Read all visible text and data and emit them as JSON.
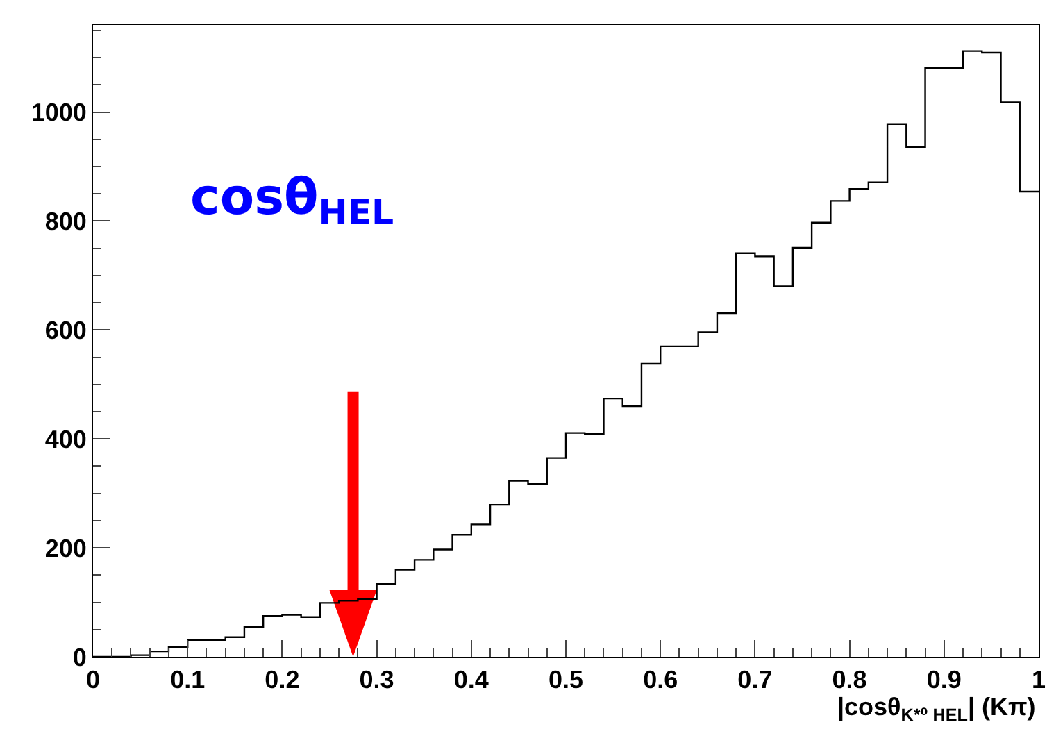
{
  "chart_data": {
    "type": "histogram",
    "xlabel": "|cosθ$_{K*⁰ HEL}$| (Kπ)",
    "bins": [
      0,
      0.02,
      0.04,
      0.06,
      0.08,
      0.1,
      0.12,
      0.14,
      0.16,
      0.18,
      0.2,
      0.22,
      0.24,
      0.26,
      0.28,
      0.3,
      0.32,
      0.34,
      0.36,
      0.38,
      0.4,
      0.42,
      0.44,
      0.46,
      0.48,
      0.5,
      0.52,
      0.54,
      0.56,
      0.58,
      0.6,
      0.62,
      0.64,
      0.66,
      0.68,
      0.7,
      0.72,
      0.74,
      0.76,
      0.78,
      0.8,
      0.82,
      0.84,
      0.86,
      0.88,
      0.9,
      0.92,
      0.94,
      0.96,
      0.98,
      1
    ],
    "values": [
      0,
      0,
      3,
      10,
      18,
      31,
      31,
      36,
      55,
      75,
      77,
      73,
      99,
      103,
      106,
      134,
      160,
      178,
      197,
      224,
      243,
      279,
      323,
      317,
      365,
      411,
      409,
      474,
      460,
      538,
      570,
      570,
      596,
      631,
      741,
      735,
      680,
      751,
      797,
      837,
      859,
      871,
      978,
      936,
      1081,
      1081,
      1112,
      1109,
      1018,
      854
    ],
    "color": "#000000",
    "xlim": [
      0,
      1
    ],
    "ylim": [
      0,
      1160
    ],
    "xticks": [
      0,
      0.1,
      0.2,
      0.3,
      0.4,
      0.5,
      0.6,
      0.7,
      0.8,
      0.9,
      1
    ],
    "yticks": [
      0,
      200,
      400,
      600,
      800,
      1000
    ],
    "grid": false,
    "annotations": [
      "cosθ$_{HEL}$"
    ]
  }
}
